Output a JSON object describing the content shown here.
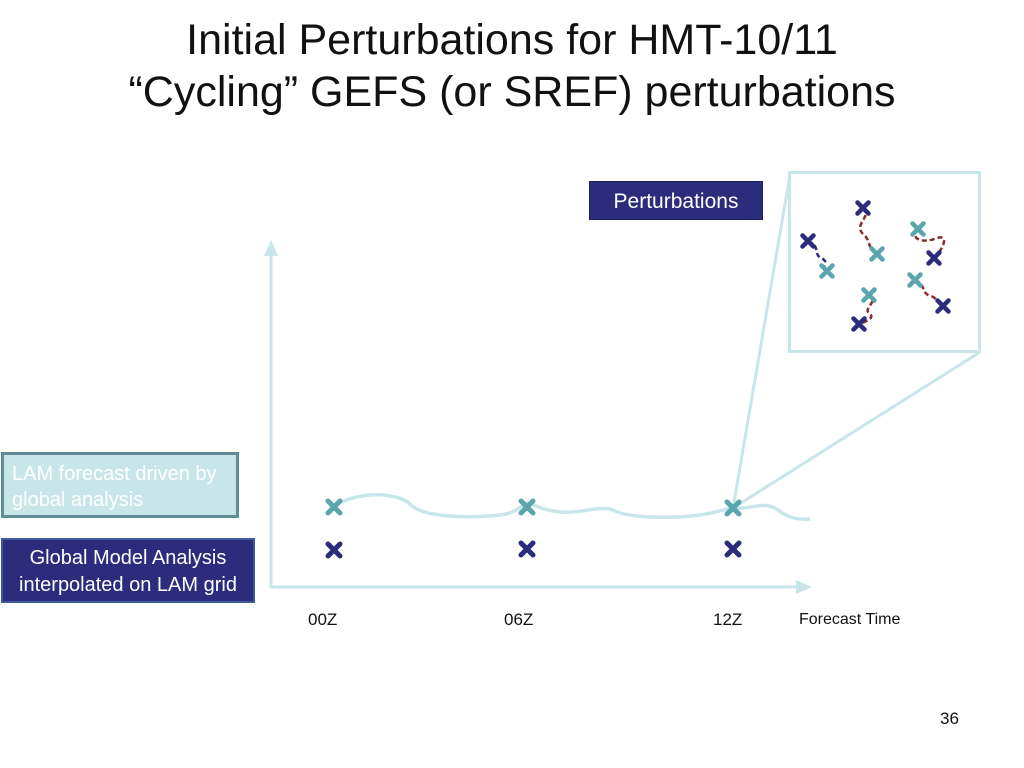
{
  "slide": {
    "title_line1": "Initial Perturbations for HMT-10/11",
    "title_line2": "“Cycling” GEFS (or SREF) perturbations",
    "page_number": "36"
  },
  "labels": {
    "perturbations": "Perturbations",
    "lam_forecast": "LAM forecast driven by global analysis",
    "global_model_line1": "Global Model Analysis",
    "global_model_line2": "interpolated on LAM grid",
    "forecast_time": "Forecast Time"
  },
  "time_axis": {
    "ticks": [
      "00Z",
      "06Z",
      "12Z"
    ]
  },
  "colors": {
    "analysis_marker": "#2b2c7c",
    "forecast_marker": "#5aa5ae",
    "axis": "#c8e6ea",
    "perturbation_link": "#8b2a2a",
    "navy_box": "#2b2c7c",
    "light_box": "#c8e6ea"
  }
}
